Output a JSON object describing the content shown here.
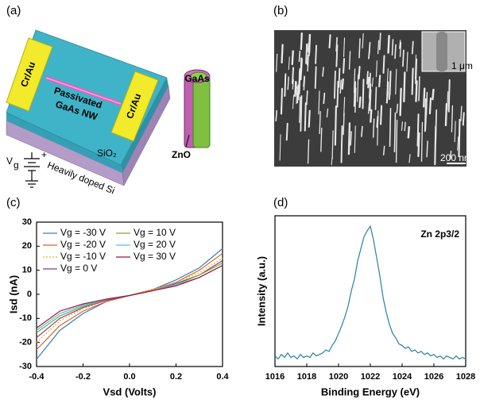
{
  "figure": {
    "a": {
      "label": "(a)",
      "electrode_left": "Cr/Au",
      "electrode_right": "Cr/Au",
      "nanowire_line1": "Passivated",
      "nanowire_line2": "GaAs NW",
      "oxide": "SiO₂",
      "substrate": "Heavily doped Si",
      "gate_symbol": "V",
      "gate_subscript": "g",
      "plus": "+",
      "core": "GaAs",
      "shell": "ZnO"
    },
    "b": {
      "label": "(b)",
      "inset_scale": "1 μm",
      "scale": "200 nm"
    }
  },
  "chart_data": [
    {
      "type": "line",
      "label": "(c)",
      "x_label": "Vsd (Volts)",
      "y_label": "Isd (nA)",
      "x": [
        -0.4,
        -0.3,
        -0.2,
        -0.1,
        0,
        0.1,
        0.2,
        0.3,
        0.4
      ],
      "series": [
        {
          "name": "Vg = -30 V",
          "color": "#3a7dc0",
          "values": [
            -27,
            -15,
            -8,
            -3,
            -0.5,
            2,
            6,
            11,
            19
          ]
        },
        {
          "name": "Vg = -20 V",
          "color": "#d9622b",
          "values": [
            -23,
            -13,
            -7,
            -3,
            -0.5,
            2,
            5,
            10,
            17
          ]
        },
        {
          "name": "Vg = -10 V",
          "color": "#e8b020",
          "dashed": true,
          "values": [
            -20,
            -11,
            -6,
            -2.5,
            -0.5,
            2,
            5,
            9,
            15
          ]
        },
        {
          "name": "Vg = 0 V",
          "color": "#7b3f8c",
          "values": [
            -18,
            -10,
            -5.5,
            -2.5,
            -0.5,
            1.5,
            4.5,
            8,
            14
          ]
        },
        {
          "name": "Vg = 10 V",
          "color": "#77ac30",
          "values": [
            -16,
            -9,
            -5,
            -2,
            -0.5,
            1.5,
            4,
            8,
            13
          ]
        },
        {
          "name": "Vg = 20 V",
          "color": "#4dbeee",
          "values": [
            -15,
            -8,
            -4.5,
            -2,
            -0.5,
            1.5,
            4,
            7,
            12
          ]
        },
        {
          "name": "Vg = 30 V",
          "color": "#a2142f",
          "values": [
            -14,
            -7,
            -4,
            -2,
            -0.5,
            1.5,
            3.5,
            7,
            12
          ]
        }
      ],
      "xlim": [
        -0.4,
        0.4
      ],
      "xticks": [
        -0.4,
        -0.2,
        {
          "value": 0,
          "label": "0.0"
        },
        0.2,
        0.4
      ],
      "ylim": [
        -30,
        30
      ],
      "yticks": [
        -30,
        -20,
        -10,
        0,
        10,
        20,
        30
      ],
      "legend": "upper-left"
    },
    {
      "type": "line",
      "label": "(d)",
      "x_label": "Binding Energy (eV)",
      "y_label": "Intensity (a.u.)",
      "annotation": "Zn 2p3/2",
      "color": "#2a7fa0",
      "x": [
        1016,
        1016.2,
        1016.4,
        1016.6,
        1016.8,
        1017,
        1017.2,
        1017.4,
        1017.6,
        1017.8,
        1018,
        1018.2,
        1018.4,
        1018.6,
        1018.8,
        1019,
        1019.2,
        1019.4,
        1019.6,
        1019.8,
        1020,
        1020.2,
        1020.4,
        1020.6,
        1020.8,
        1021,
        1021.2,
        1021.4,
        1021.6,
        1021.8,
        1022,
        1022.2,
        1022.4,
        1022.6,
        1022.8,
        1023,
        1023.2,
        1023.4,
        1023.6,
        1023.8,
        1024,
        1024.2,
        1024.4,
        1024.6,
        1024.8,
        1025,
        1025.2,
        1025.4,
        1025.6,
        1025.8,
        1026,
        1026.2,
        1026.4,
        1026.6,
        1026.8,
        1027,
        1027.2,
        1027.4,
        1027.6,
        1027.8,
        1028
      ],
      "values": [
        0.07,
        0.05,
        0.08,
        0.06,
        0.09,
        0.06,
        0.07,
        0.05,
        0.08,
        0.06,
        0.07,
        0.06,
        0.09,
        0.07,
        0.08,
        0.09,
        0.11,
        0.1,
        0.14,
        0.17,
        0.22,
        0.27,
        0.33,
        0.4,
        0.5,
        0.58,
        0.7,
        0.78,
        0.86,
        0.9,
        0.93,
        0.84,
        0.72,
        0.6,
        0.46,
        0.36,
        0.28,
        0.22,
        0.19,
        0.15,
        0.14,
        0.12,
        0.13,
        0.1,
        0.11,
        0.09,
        0.1,
        0.08,
        0.09,
        0.07,
        0.08,
        0.06,
        0.07,
        0.05,
        0.07,
        0.06,
        0.05,
        0.07,
        0.05,
        0.06,
        0.05
      ],
      "xlim": [
        1016,
        1028
      ],
      "xticks": [
        1016,
        1018,
        1020,
        1022,
        1024,
        1026,
        1028
      ],
      "ylim": [
        0,
        1
      ]
    }
  ]
}
